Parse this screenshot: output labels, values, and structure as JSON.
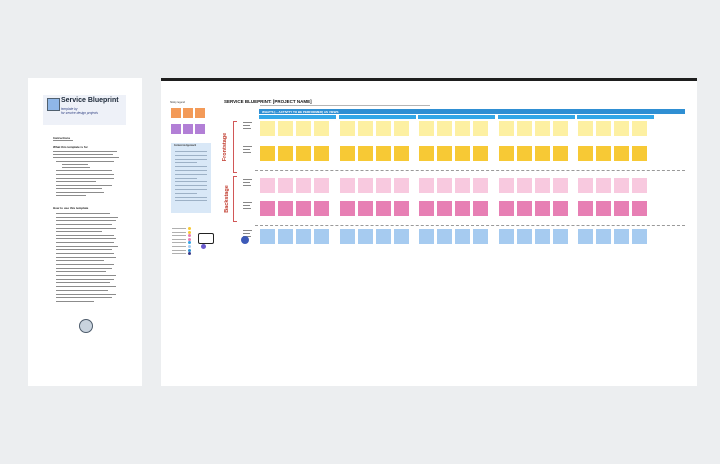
{
  "colors": {
    "light_yellow": "#fdf0a2",
    "yellow": "#f7c935",
    "light_pink": "#f8c9df",
    "pink": "#e77fb4",
    "blue": "#a6cbf0",
    "header_blue": "#34a7e7",
    "accent_red": "#c0392b",
    "legend_orange": "#f39a58",
    "legend_purple": "#b27fd6"
  },
  "left_panel": {
    "title": "Service Blueprint",
    "subtitle_line1": "template by",
    "subtitle_line2": "for service design projects",
    "section_instructions": "Instructions",
    "section_what": "What this template is for",
    "section_how": "How to use this template"
  },
  "board": {
    "legend_title": "Sticky legend",
    "note_title": "Context & Approach",
    "blueprint_title": "SERVICE BLUEPRINT: [PROJECT NAME]",
    "journey_bar_label": "WHAT'S [... ACTIVITY TO BE PERFORMED] AS VIEWS",
    "stage_count": 5,
    "columns_per_stage": 4,
    "side_label_top": "Frontstage",
    "side_label_bottom": "Backstage"
  },
  "sticky_rows": [
    "light_yellow",
    "yellow",
    "light_pink",
    "pink",
    "blue"
  ]
}
